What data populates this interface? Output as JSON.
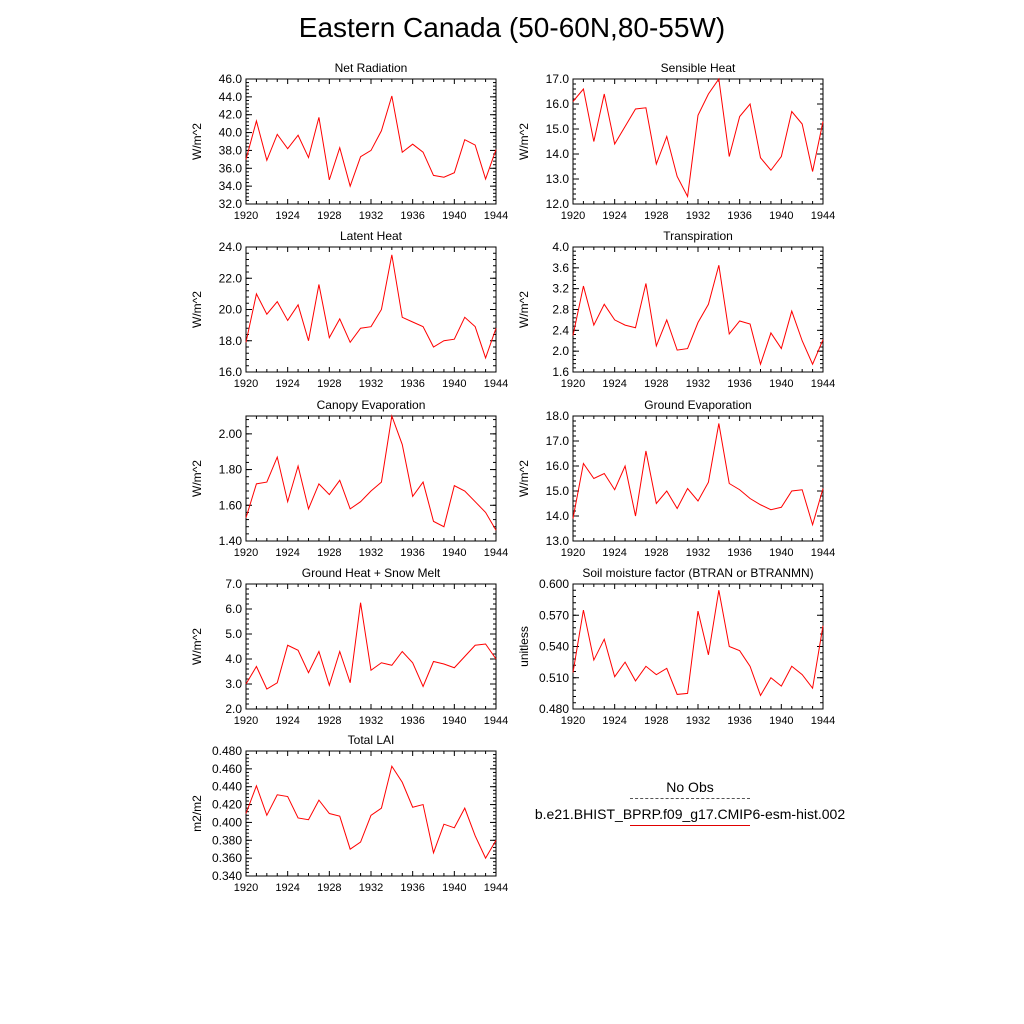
{
  "title": "Eastern Canada (50-60N,80-55W)",
  "colors": {
    "line": "#ff0000",
    "axis": "#000000"
  },
  "legend": {
    "obs_label": "No Obs",
    "model_label": "b.e21.BHIST_BPRP.f09_g17.CMIP6-esm-hist.002"
  },
  "chart_data": [
    {
      "type": "line",
      "title": "Net Radiation",
      "ylabel": "W/m^2",
      "ylim": [
        32.0,
        46.0
      ],
      "yticks": [
        "32.0",
        "34.0",
        "36.0",
        "38.0",
        "40.0",
        "42.0",
        "44.0",
        "46.0"
      ],
      "xlim": [
        1920,
        1944
      ],
      "xticks": [
        "1920",
        "1924",
        "1928",
        "1932",
        "1936",
        "1940",
        "1944"
      ],
      "x": [
        1920,
        1921,
        1922,
        1923,
        1924,
        1925,
        1926,
        1927,
        1928,
        1929,
        1930,
        1931,
        1932,
        1933,
        1934,
        1935,
        1936,
        1937,
        1938,
        1939,
        1940,
        1941,
        1942,
        1943,
        1944
      ],
      "values": [
        37.0,
        41.3,
        36.9,
        39.8,
        38.2,
        39.7,
        37.2,
        41.7,
        34.7,
        38.3,
        34.0,
        37.3,
        38.0,
        40.2,
        44.1,
        37.8,
        38.7,
        37.8,
        35.2,
        35.0,
        35.5,
        39.2,
        38.6,
        34.8,
        38.1
      ]
    },
    {
      "type": "line",
      "title": "Sensible Heat",
      "ylabel": "W/m^2",
      "ylim": [
        12.0,
        17.0
      ],
      "yticks": [
        "12.0",
        "13.0",
        "14.0",
        "15.0",
        "16.0",
        "17.0"
      ],
      "xlim": [
        1920,
        1944
      ],
      "xticks": [
        "1920",
        "1924",
        "1928",
        "1932",
        "1936",
        "1940",
        "1944"
      ],
      "x": [
        1920,
        1921,
        1922,
        1923,
        1924,
        1925,
        1926,
        1927,
        1928,
        1929,
        1930,
        1931,
        1932,
        1933,
        1934,
        1935,
        1936,
        1937,
        1938,
        1939,
        1940,
        1941,
        1942,
        1943,
        1944
      ],
      "values": [
        16.1,
        16.6,
        14.5,
        16.4,
        14.4,
        15.1,
        15.8,
        15.85,
        13.6,
        14.7,
        13.1,
        12.3,
        15.55,
        16.4,
        17.0,
        13.9,
        15.5,
        16.0,
        13.85,
        13.35,
        13.9,
        15.7,
        15.2,
        13.3,
        15.3
      ]
    },
    {
      "type": "line",
      "title": "Latent Heat",
      "ylabel": "W/m^2",
      "ylim": [
        16.0,
        24.0
      ],
      "yticks": [
        "16.0",
        "18.0",
        "20.0",
        "22.0",
        "24.0"
      ],
      "xlim": [
        1920,
        1944
      ],
      "xticks": [
        "1920",
        "1924",
        "1928",
        "1932",
        "1936",
        "1940",
        "1944"
      ],
      "x": [
        1920,
        1921,
        1922,
        1923,
        1924,
        1925,
        1926,
        1927,
        1928,
        1929,
        1930,
        1931,
        1932,
        1933,
        1934,
        1935,
        1936,
        1937,
        1938,
        1939,
        1940,
        1941,
        1942,
        1943,
        1944
      ],
      "values": [
        17.9,
        21.0,
        19.7,
        20.5,
        19.3,
        20.3,
        18.0,
        21.6,
        18.2,
        19.4,
        17.9,
        18.8,
        18.9,
        20.0,
        23.5,
        19.5,
        19.2,
        18.9,
        17.6,
        18.0,
        18.1,
        19.5,
        18.9,
        16.9,
        18.8
      ]
    },
    {
      "type": "line",
      "title": "Transpiration",
      "ylabel": "W/m^2",
      "ylim": [
        1.6,
        4.0
      ],
      "yticks": [
        "1.6",
        "2.0",
        "2.4",
        "2.8",
        "3.2",
        "3.6",
        "4.0"
      ],
      "xlim": [
        1920,
        1944
      ],
      "xticks": [
        "1920",
        "1924",
        "1928",
        "1932",
        "1936",
        "1940",
        "1944"
      ],
      "x": [
        1920,
        1921,
        1922,
        1923,
        1924,
        1925,
        1926,
        1927,
        1928,
        1929,
        1930,
        1931,
        1932,
        1933,
        1934,
        1935,
        1936,
        1937,
        1938,
        1939,
        1940,
        1941,
        1942,
        1943,
        1944
      ],
      "values": [
        2.3,
        3.25,
        2.5,
        2.9,
        2.6,
        2.5,
        2.45,
        3.3,
        2.1,
        2.6,
        2.02,
        2.05,
        2.55,
        2.9,
        3.65,
        2.33,
        2.58,
        2.52,
        1.75,
        2.35,
        2.05,
        2.77,
        2.2,
        1.75,
        2.22
      ]
    },
    {
      "type": "line",
      "title": "Canopy Evaporation",
      "ylabel": "W/m^2",
      "ylim": [
        1.4,
        2.1
      ],
      "yticks": [
        "1.40",
        "1.60",
        "1.80",
        "2.00"
      ],
      "xlim": [
        1920,
        1944
      ],
      "xticks": [
        "1920",
        "1924",
        "1928",
        "1932",
        "1936",
        "1940",
        "1944"
      ],
      "x": [
        1920,
        1921,
        1922,
        1923,
        1924,
        1925,
        1926,
        1927,
        1928,
        1929,
        1930,
        1931,
        1932,
        1933,
        1934,
        1935,
        1936,
        1937,
        1938,
        1939,
        1940,
        1941,
        1942,
        1943,
        1944
      ],
      "values": [
        1.53,
        1.72,
        1.73,
        1.87,
        1.62,
        1.82,
        1.58,
        1.72,
        1.66,
        1.74,
        1.58,
        1.62,
        1.68,
        1.73,
        2.1,
        1.94,
        1.65,
        1.73,
        1.51,
        1.48,
        1.71,
        1.68,
        1.62,
        1.56,
        1.46
      ]
    },
    {
      "type": "line",
      "title": "Ground Evaporation",
      "ylabel": "W/m^2",
      "ylim": [
        13.0,
        18.0
      ],
      "yticks": [
        "13.0",
        "14.0",
        "15.0",
        "16.0",
        "17.0",
        "18.0"
      ],
      "xlim": [
        1920,
        1944
      ],
      "xticks": [
        "1920",
        "1924",
        "1928",
        "1932",
        "1936",
        "1940",
        "1944"
      ],
      "x": [
        1920,
        1921,
        1922,
        1923,
        1924,
        1925,
        1926,
        1927,
        1928,
        1929,
        1930,
        1931,
        1932,
        1933,
        1934,
        1935,
        1936,
        1937,
        1938,
        1939,
        1940,
        1941,
        1942,
        1943,
        1944
      ],
      "values": [
        13.9,
        16.1,
        15.5,
        15.7,
        15.05,
        16.0,
        14.0,
        16.6,
        14.5,
        15.0,
        14.3,
        15.1,
        14.6,
        15.35,
        17.7,
        15.3,
        15.05,
        14.7,
        14.45,
        14.25,
        14.35,
        15.0,
        15.05,
        13.65,
        15.1
      ]
    },
    {
      "type": "line",
      "title": "Ground Heat + Snow Melt",
      "ylabel": "W/m^2",
      "ylim": [
        2.0,
        7.0
      ],
      "yticks": [
        "2.0",
        "3.0",
        "4.0",
        "5.0",
        "6.0",
        "7.0"
      ],
      "xlim": [
        1920,
        1944
      ],
      "xticks": [
        "1920",
        "1924",
        "1928",
        "1932",
        "1936",
        "1940",
        "1944"
      ],
      "x": [
        1920,
        1921,
        1922,
        1923,
        1924,
        1925,
        1926,
        1927,
        1928,
        1929,
        1930,
        1931,
        1932,
        1933,
        1934,
        1935,
        1936,
        1937,
        1938,
        1939,
        1940,
        1941,
        1942,
        1943,
        1944
      ],
      "values": [
        3.0,
        3.7,
        2.8,
        3.05,
        4.55,
        4.35,
        3.45,
        4.3,
        2.95,
        4.3,
        3.05,
        6.25,
        3.55,
        3.85,
        3.75,
        4.3,
        3.85,
        2.9,
        3.9,
        3.8,
        3.65,
        4.1,
        4.55,
        4.6,
        4.0
      ]
    },
    {
      "type": "line",
      "title": "Soil moisture factor (BTRAN or BTRANMN)",
      "ylabel": "unitless",
      "ylim": [
        0.48,
        0.6
      ],
      "yticks": [
        "0.480",
        "0.510",
        "0.540",
        "0.570",
        "0.600"
      ],
      "xlim": [
        1920,
        1944
      ],
      "xticks": [
        "1920",
        "1924",
        "1928",
        "1932",
        "1936",
        "1940",
        "1944"
      ],
      "x": [
        1920,
        1921,
        1922,
        1923,
        1924,
        1925,
        1926,
        1927,
        1928,
        1929,
        1930,
        1931,
        1932,
        1933,
        1934,
        1935,
        1936,
        1937,
        1938,
        1939,
        1940,
        1941,
        1942,
        1943,
        1944
      ],
      "values": [
        0.515,
        0.575,
        0.527,
        0.547,
        0.511,
        0.525,
        0.507,
        0.521,
        0.513,
        0.519,
        0.494,
        0.495,
        0.574,
        0.532,
        0.594,
        0.54,
        0.536,
        0.521,
        0.493,
        0.51,
        0.502,
        0.521,
        0.513,
        0.5,
        0.56
      ]
    },
    {
      "type": "line",
      "title": "Total LAI",
      "ylabel": "m2/m2",
      "ylim": [
        0.34,
        0.48
      ],
      "yticks": [
        "0.340",
        "0.360",
        "0.380",
        "0.400",
        "0.420",
        "0.440",
        "0.460",
        "0.480"
      ],
      "xlim": [
        1920,
        1944
      ],
      "xticks": [
        "1920",
        "1924",
        "1928",
        "1932",
        "1936",
        "1940",
        "1944"
      ],
      "x": [
        1920,
        1921,
        1922,
        1923,
        1924,
        1925,
        1926,
        1927,
        1928,
        1929,
        1930,
        1931,
        1932,
        1933,
        1934,
        1935,
        1936,
        1937,
        1938,
        1939,
        1940,
        1941,
        1942,
        1943,
        1944
      ],
      "values": [
        0.41,
        0.441,
        0.408,
        0.431,
        0.429,
        0.405,
        0.403,
        0.425,
        0.41,
        0.407,
        0.37,
        0.378,
        0.408,
        0.416,
        0.463,
        0.445,
        0.417,
        0.42,
        0.366,
        0.398,
        0.394,
        0.416,
        0.385,
        0.36,
        0.38
      ]
    }
  ]
}
